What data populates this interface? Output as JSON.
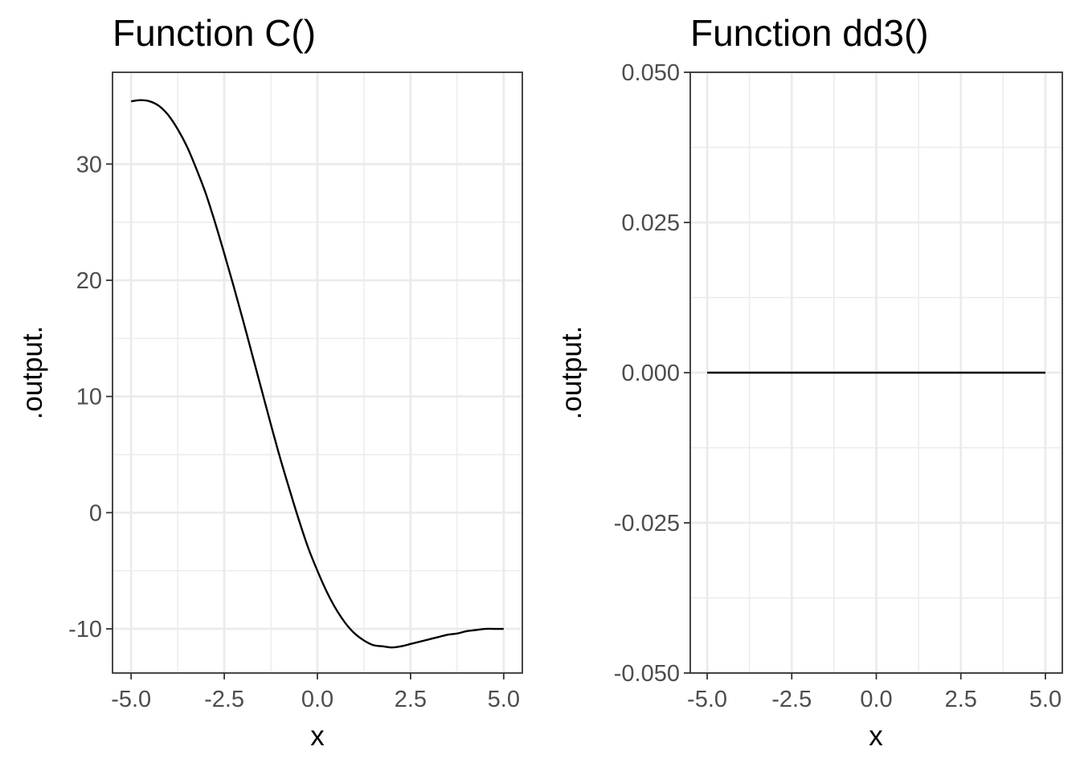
{
  "chart_data": [
    {
      "type": "line",
      "title": "Function C()",
      "xlabel": "x",
      "ylabel": ".output.",
      "xlim": [
        -5.5,
        5.5
      ],
      "ylim": [
        -13.8,
        37.9
      ],
      "x_ticks": [
        -5.0,
        -2.5,
        0.0,
        2.5,
        5.0
      ],
      "x_tick_labels": [
        "-5.0",
        "-2.5",
        "0.0",
        "2.5",
        "5.0"
      ],
      "y_ticks": [
        -10,
        0,
        10,
        20,
        30
      ],
      "y_tick_labels": [
        "-10",
        "0",
        "10",
        "20",
        "30"
      ],
      "grid": true,
      "legend": "none",
      "series": [
        {
          "color": "#000000",
          "x": [
            -5.0,
            -4.75,
            -4.5,
            -4.25,
            -4.0,
            -3.75,
            -3.5,
            -3.25,
            -3.0,
            -2.75,
            -2.5,
            -2.25,
            -2.0,
            -1.75,
            -1.5,
            -1.25,
            -1.0,
            -0.75,
            -0.5,
            -0.25,
            0.0,
            0.25,
            0.5,
            0.75,
            1.0,
            1.25,
            1.5,
            1.75,
            2.0,
            2.25,
            2.5,
            2.75,
            3.0,
            3.25,
            3.5,
            3.75,
            4.0,
            4.25,
            4.5,
            4.75,
            5.0
          ],
          "y": [
            35.4,
            35.5,
            35.4,
            35.0,
            34.2,
            33.0,
            31.5,
            29.6,
            27.5,
            25.0,
            22.3,
            19.5,
            16.6,
            13.6,
            10.6,
            7.6,
            4.7,
            2.0,
            -0.6,
            -3.0,
            -5.0,
            -6.8,
            -8.3,
            -9.5,
            -10.4,
            -11.0,
            -11.4,
            -11.5,
            -11.6,
            -11.5,
            -11.3,
            -11.1,
            -10.9,
            -10.7,
            -10.5,
            -10.4,
            -10.2,
            -10.1,
            -10.0,
            -10.0,
            -10.0
          ]
        }
      ]
    },
    {
      "type": "line",
      "title": "Function dd3()",
      "xlabel": "x",
      "ylabel": ".output.",
      "xlim": [
        -5.5,
        5.5
      ],
      "ylim": [
        -0.05,
        0.05
      ],
      "x_ticks": [
        -5.0,
        -2.5,
        0.0,
        2.5,
        5.0
      ],
      "x_tick_labels": [
        "-5.0",
        "-2.5",
        "0.0",
        "2.5",
        "5.0"
      ],
      "y_ticks": [
        -0.05,
        -0.025,
        0.0,
        0.025,
        0.05
      ],
      "y_tick_labels": [
        "-0.050",
        "-0.025",
        "0.000",
        "0.025",
        "0.050"
      ],
      "grid": true,
      "legend": "none",
      "series": [
        {
          "color": "#000000",
          "x": [
            -5.0,
            -2.5,
            0.0,
            2.5,
            5.0
          ],
          "y": [
            0.0,
            0.0,
            0.0,
            0.0,
            0.0
          ]
        }
      ]
    }
  ]
}
